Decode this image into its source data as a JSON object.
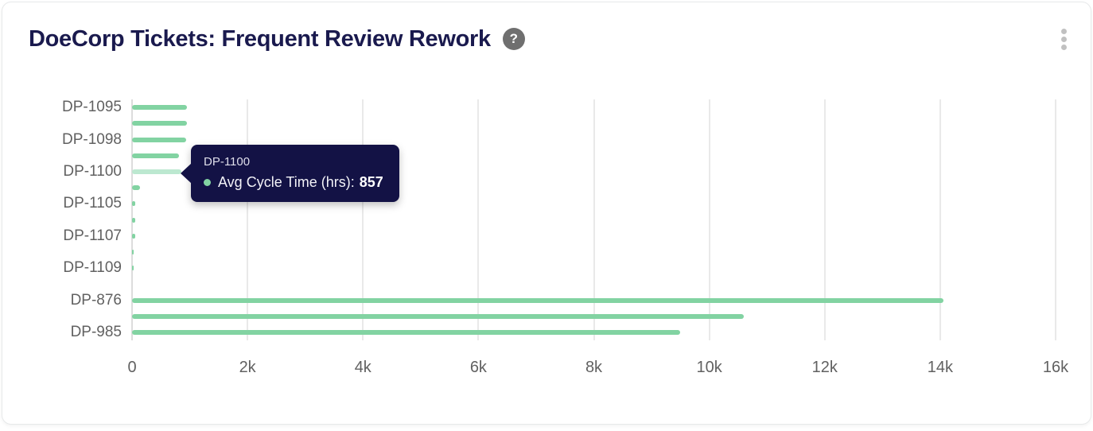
{
  "header": {
    "title": "DoeCorp Tickets: Frequent Review Rework",
    "help_icon": "question-mark-circle",
    "menu_icon": "kebab-vertical"
  },
  "colors": {
    "bar": "#82d3a2",
    "bar_highlight": "#bce8d0",
    "tooltip_bg": "#131245",
    "title_text": "#1a1a4e",
    "axis_text": "#616161",
    "gridline": "#e9e9e9",
    "axis_line": "#dcdcdc",
    "help_icon_bg": "#6f6f6f",
    "menu_dots": "#c1c1c1",
    "card_border": "#e7e9ea",
    "page_bg": "#ffffff"
  },
  "chart_data": {
    "type": "bar",
    "orientation": "horizontal",
    "title": "DoeCorp Tickets: Frequent Review Rework",
    "series_name": "Avg Cycle Time (hrs)",
    "xlabel": "",
    "ylabel": "",
    "xlim": [
      0,
      16000
    ],
    "grid": "vertical",
    "legend": "none",
    "categories": [
      "DP-1095",
      "",
      "DP-1098",
      "",
      "DP-1100",
      "",
      "DP-1105",
      "",
      "DP-1107",
      "",
      "DP-1109",
      "",
      "DP-876",
      "",
      "DP-985"
    ],
    "values": [
      950,
      948,
      940,
      815,
      857,
      135,
      55,
      57,
      55,
      32,
      30,
      0,
      14050,
      10600,
      9500
    ],
    "label_note": "y-axis shows every other category label",
    "xticks": {
      "values": [
        0,
        2000,
        4000,
        6000,
        8000,
        10000,
        12000,
        14000,
        16000
      ],
      "labels": [
        "0",
        "2k",
        "4k",
        "6k",
        "8k",
        "10k",
        "12k",
        "14k",
        "16k"
      ]
    },
    "highlighted_category": "DP-1100"
  },
  "tooltip": {
    "title": "DP-1100",
    "label": "Avg Cycle Time (hrs):",
    "value": "857"
  }
}
